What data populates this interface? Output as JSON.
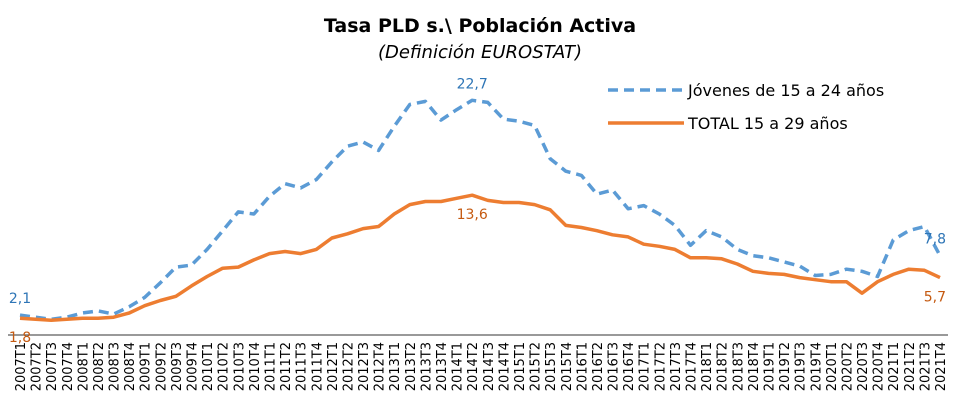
{
  "chart_data": {
    "type": "line",
    "title": "Tasa PLD s.\\ Población Activa",
    "subtitle": "(Definición EUROSTAT)",
    "categories": [
      "2007T1",
      "2007T2",
      "2007T3",
      "2007T4",
      "2008T1",
      "2008T2",
      "2008T3",
      "2008T4",
      "2009T1",
      "2009T2",
      "2009T3",
      "2009T4",
      "2010T1",
      "2010T2",
      "2010T3",
      "2010T4",
      "2011T1",
      "2011T2",
      "2011T3",
      "2011T4",
      "2012T1",
      "2012T2",
      "2012T3",
      "2012T4",
      "2013T1",
      "2013T2",
      "2013T3",
      "2013T4",
      "2014T1",
      "2014T2",
      "2014T3",
      "2014T4",
      "2015T1",
      "2015T2",
      "2015T3",
      "2015T4",
      "2016T1",
      "2016T2",
      "2016T3",
      "2016T4",
      "2017T1",
      "2017T2",
      "2017T3",
      "2017T4",
      "2018T1",
      "2018T2",
      "2018T3",
      "2018T4",
      "2019T1",
      "2019T2",
      "2019T3",
      "2019T4",
      "2020T1",
      "2020T2",
      "2020T3",
      "2020T4",
      "2021T1",
      "2021T2",
      "2021T3",
      "2021T4"
    ],
    "series": [
      {
        "name": "Jóvenes de 15 a 24 años",
        "color": "#5b9bd5",
        "dashed": true,
        "values": [
          2.1,
          1.9,
          1.7,
          1.9,
          2.3,
          2.5,
          2.2,
          2.9,
          3.8,
          5.2,
          6.7,
          6.9,
          8.4,
          10.2,
          12.0,
          11.8,
          13.5,
          14.7,
          14.3,
          15.1,
          16.8,
          18.3,
          18.7,
          17.9,
          20.2,
          22.3,
          22.6,
          20.8,
          21.8,
          22.7,
          22.5,
          20.9,
          20.7,
          20.3,
          17.1,
          15.9,
          15.5,
          13.7,
          14.1,
          12.3,
          12.6,
          11.8,
          10.7,
          8.8,
          10.2,
          9.6,
          8.4,
          7.8,
          7.6,
          7.2,
          6.8,
          5.9,
          6.0,
          6.5,
          6.3,
          5.8,
          9.3,
          10.2,
          10.6,
          7.8
        ],
        "value_labels": [
          "2,1",
          null,
          null,
          null,
          null,
          null,
          null,
          null,
          null,
          null,
          null,
          null,
          null,
          null,
          null,
          null,
          null,
          null,
          null,
          null,
          null,
          null,
          null,
          null,
          null,
          null,
          null,
          null,
          null,
          "22,7",
          null,
          null,
          null,
          null,
          null,
          null,
          null,
          null,
          null,
          null,
          null,
          null,
          null,
          null,
          null,
          null,
          null,
          null,
          null,
          null,
          null,
          null,
          null,
          null,
          null,
          null,
          null,
          null,
          null,
          "7,8"
        ]
      },
      {
        "name": "TOTAL 15 a 29 años",
        "color": "#ed7d31",
        "dashed": false,
        "values": [
          1.8,
          1.7,
          1.6,
          1.7,
          1.8,
          1.8,
          1.9,
          2.3,
          3.0,
          3.5,
          3.9,
          4.9,
          5.8,
          6.6,
          6.7,
          7.4,
          8.0,
          8.2,
          8.0,
          8.4,
          9.5,
          9.9,
          10.4,
          10.6,
          11.8,
          12.7,
          13.0,
          13.0,
          13.3,
          13.6,
          13.1,
          12.9,
          12.9,
          12.7,
          12.2,
          10.7,
          10.5,
          10.2,
          9.8,
          9.6,
          8.9,
          8.7,
          8.4,
          7.6,
          7.6,
          7.5,
          7.0,
          6.3,
          6.1,
          6.0,
          5.7,
          5.5,
          5.3,
          5.3,
          4.2,
          5.3,
          6.0,
          6.5,
          6.4,
          5.7
        ],
        "value_labels": [
          "1,8",
          null,
          null,
          null,
          null,
          null,
          null,
          null,
          null,
          null,
          null,
          null,
          null,
          null,
          null,
          null,
          null,
          null,
          null,
          null,
          null,
          null,
          null,
          null,
          null,
          null,
          null,
          null,
          null,
          "13,6",
          null,
          null,
          null,
          null,
          null,
          null,
          null,
          null,
          null,
          null,
          null,
          null,
          null,
          null,
          null,
          null,
          null,
          null,
          null,
          null,
          null,
          null,
          null,
          null,
          null,
          null,
          null,
          null,
          null,
          "5,7"
        ]
      }
    ],
    "ylim": [
      0,
      23.5
    ],
    "legend": "top-right"
  }
}
